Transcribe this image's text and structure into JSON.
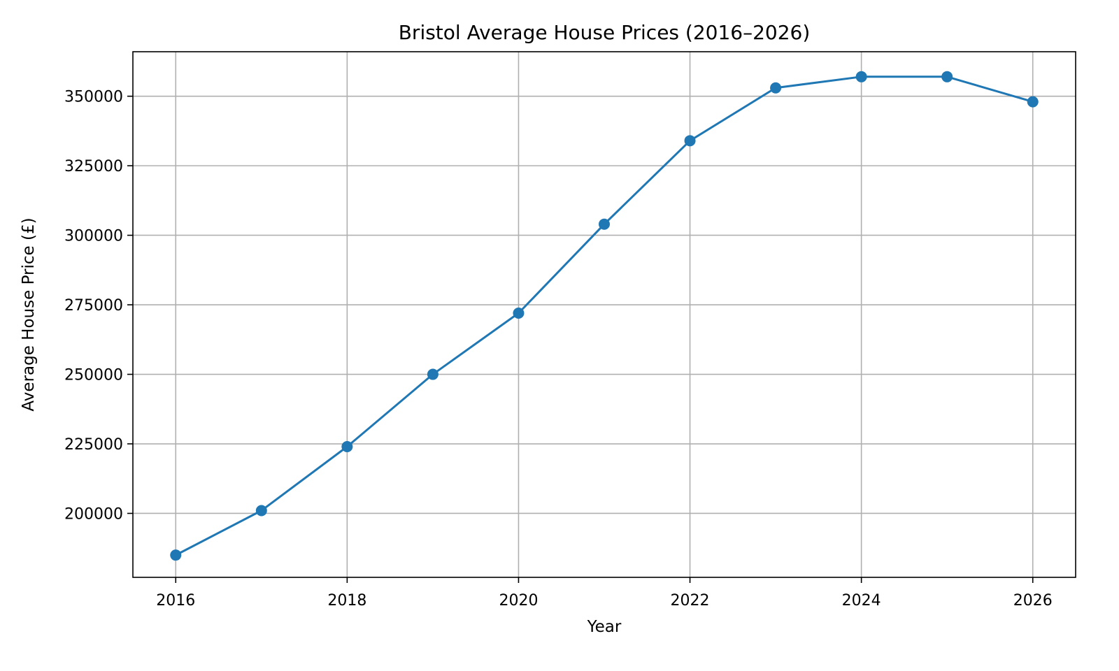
{
  "chart_data": {
    "type": "line",
    "title": "Bristol Average House Prices (2016–2026)",
    "xlabel": "Year",
    "ylabel": "Average House Price (£)",
    "x": [
      2016,
      2017,
      2018,
      2019,
      2020,
      2021,
      2022,
      2023,
      2024,
      2025,
      2026
    ],
    "series": [
      {
        "values": [
          185000,
          201000,
          224000,
          250000,
          272000,
          304000,
          334000,
          353000,
          357000,
          357000,
          348000
        ],
        "color": "#1f77b4",
        "marker": "circle"
      }
    ],
    "xlim": [
      2015.5,
      2026.5
    ],
    "ylim": [
      177000,
      366000
    ],
    "xticks": [
      "2016",
      "2018",
      "2020",
      "2022",
      "2024",
      "2026"
    ],
    "yticks": [
      "200000",
      "225000",
      "250000",
      "275000",
      "300000",
      "325000",
      "350000"
    ],
    "grid": true,
    "legend": "none"
  }
}
